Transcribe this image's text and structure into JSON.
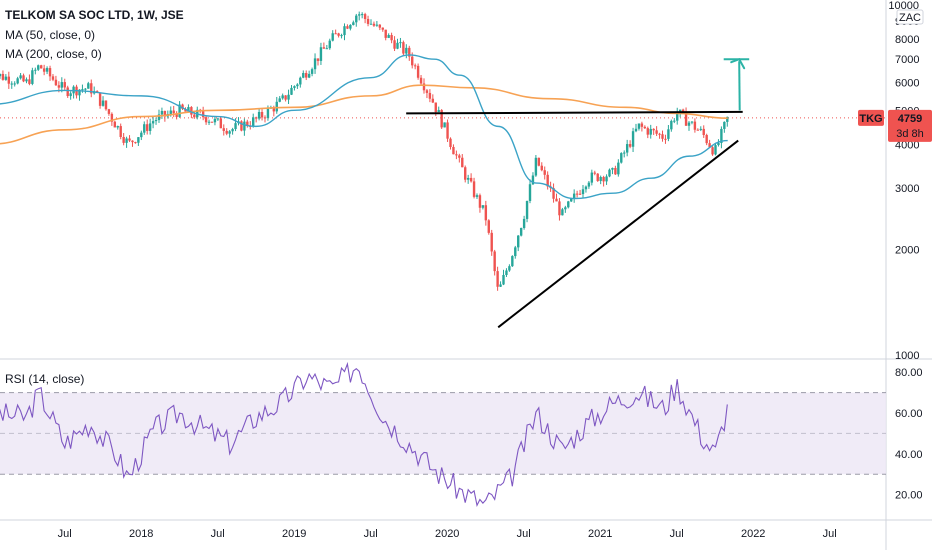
{
  "header": {
    "symbol_line": "TELKOM SA SOC LTD, 1W, JSE",
    "ma50_label": "MA (50, close, 0)",
    "ma200_label": "MA (200, close, 0)",
    "rsi_label": "RSI (14, close)"
  },
  "price_badge": {
    "ticker": "TKG",
    "price": "4759",
    "countdown": "3d 8h",
    "color": "#ef5350"
  },
  "currency": "ZAC",
  "colors": {
    "up": "#26a69a",
    "down": "#ef5350",
    "ma50": "#3ba3c7",
    "ma200": "#f7a254",
    "rsi": "#7e57c2",
    "rsi_band": "#ede7f6",
    "trendline": "#000000",
    "arrow": "#2bb3a6"
  },
  "chart_data": [
    {
      "type": "candlestick",
      "title": "TELKOM SA SOC LTD, 1W, JSE",
      "y_ticks": [
        "10000",
        "9000",
        "8000",
        "7000",
        "6000",
        "5000",
        "4000",
        "3000",
        "2000",
        "1000"
      ],
      "x_ticks": [
        "Jul",
        "2018",
        "Jul",
        "2019",
        "Jul",
        "2020",
        "Jul",
        "2021",
        "Jul",
        "2022",
        "Jul"
      ],
      "ylim": [
        1000,
        10000
      ],
      "last_price": 4759,
      "series_path": [
        [
          "2017-01",
          6400
        ],
        [
          "2017-04",
          6000
        ],
        [
          "2017-05",
          6700
        ],
        [
          "2017-07",
          5700
        ],
        [
          "2017-09",
          5800
        ],
        [
          "2017-10",
          5200
        ],
        [
          "2017-12",
          4000
        ],
        [
          "2018-02",
          4700
        ],
        [
          "2018-04",
          5000
        ],
        [
          "2018-06",
          4800
        ],
        [
          "2018-08",
          4400
        ],
        [
          "2018-10",
          4700
        ],
        [
          "2018-12",
          5300
        ],
        [
          "2019-02",
          6500
        ],
        [
          "2019-04",
          8000
        ],
        [
          "2019-06",
          9500
        ],
        [
          "2019-08",
          8300
        ],
        [
          "2019-10",
          7200
        ],
        [
          "2019-12",
          5200
        ],
        [
          "2020-02",
          3500
        ],
        [
          "2020-04",
          2500
        ],
        [
          "2020-05",
          1500
        ],
        [
          "2020-06",
          1900
        ],
        [
          "2020-07",
          2500
        ],
        [
          "2020-08",
          3600
        ],
        [
          "2020-10",
          2500
        ],
        [
          "2020-12",
          3200
        ],
        [
          "2021-02",
          3300
        ],
        [
          "2021-04",
          4500
        ],
        [
          "2021-06",
          4200
        ],
        [
          "2021-07",
          4950
        ],
        [
          "2021-09",
          4300
        ],
        [
          "2021-10",
          3800
        ],
        [
          "2021-11",
          4759
        ]
      ],
      "series": [
        {
          "name": "MA (50, close, 0)",
          "points": [
            [
              "2017-01",
              5200
            ],
            [
              "2017-07",
              5700
            ],
            [
              "2018-01",
              5500
            ],
            [
              "2018-07",
              4800
            ],
            [
              "2018-10",
              4500
            ],
            [
              "2019-01",
              5000
            ],
            [
              "2019-07",
              6200
            ],
            [
              "2019-10",
              7200
            ],
            [
              "2019-12",
              7000
            ],
            [
              "2020-02",
              6300
            ],
            [
              "2020-05",
              4500
            ],
            [
              "2020-08",
              3100
            ],
            [
              "2020-11",
              2800
            ],
            [
              "2021-02",
              2900
            ],
            [
              "2021-05",
              3200
            ],
            [
              "2021-08",
              3700
            ],
            [
              "2021-11",
              4100
            ]
          ]
        },
        {
          "name": "MA (200, close, 0)",
          "points": [
            [
              "2017-01",
              4000
            ],
            [
              "2017-07",
              4400
            ],
            [
              "2018-01",
              4800
            ],
            [
              "2018-07",
              5000
            ],
            [
              "2019-01",
              5100
            ],
            [
              "2019-07",
              5500
            ],
            [
              "2019-11",
              5900
            ],
            [
              "2020-03",
              5800
            ],
            [
              "2020-09",
              5400
            ],
            [
              "2021-03",
              5100
            ],
            [
              "2021-07",
              4900
            ],
            [
              "2021-11",
              4750
            ]
          ]
        }
      ],
      "annotations": {
        "resistance": [
          [
            "2019-09",
            4900
          ],
          [
            "2021-11",
            4950
          ]
        ],
        "support": [
          [
            "2020-05",
            1200
          ],
          [
            "2022-01",
            4100
          ]
        ],
        "target_arrow": [
          [
            "2021-11",
            5000
          ],
          [
            "2022-01",
            7000
          ]
        ],
        "target_line": [
          [
            "2021-11",
            7000
          ],
          [
            "2022-01",
            7000
          ]
        ]
      }
    },
    {
      "type": "line",
      "title": "RSI (14, close)",
      "y_ticks": [
        "80.00",
        "60.00",
        "40.00",
        "20.00"
      ],
      "ylim": [
        10,
        85
      ],
      "band": [
        30,
        70
      ],
      "midline": 50,
      "points": [
        [
          "2017-01",
          60
        ],
        [
          "2017-04",
          58
        ],
        [
          "2017-05",
          70
        ],
        [
          "2017-07",
          45
        ],
        [
          "2017-09",
          55
        ],
        [
          "2017-11",
          40
        ],
        [
          "2017-12",
          28
        ],
        [
          "2018-02",
          52
        ],
        [
          "2018-04",
          60
        ],
        [
          "2018-06",
          52
        ],
        [
          "2018-08",
          45
        ],
        [
          "2018-10",
          58
        ],
        [
          "2018-12",
          65
        ],
        [
          "2019-02",
          78
        ],
        [
          "2019-04",
          72
        ],
        [
          "2019-06",
          84
        ],
        [
          "2019-08",
          58
        ],
        [
          "2019-10",
          45
        ],
        [
          "2019-12",
          32
        ],
        [
          "2020-02",
          22
        ],
        [
          "2020-04",
          15
        ],
        [
          "2020-06",
          28
        ],
        [
          "2020-08",
          60
        ],
        [
          "2020-10",
          42
        ],
        [
          "2020-12",
          55
        ],
        [
          "2021-02",
          65
        ],
        [
          "2021-04",
          70
        ],
        [
          "2021-06",
          62
        ],
        [
          "2021-07",
          74
        ],
        [
          "2021-09",
          48
        ],
        [
          "2021-10",
          40
        ],
        [
          "2021-11",
          63
        ]
      ]
    }
  ]
}
